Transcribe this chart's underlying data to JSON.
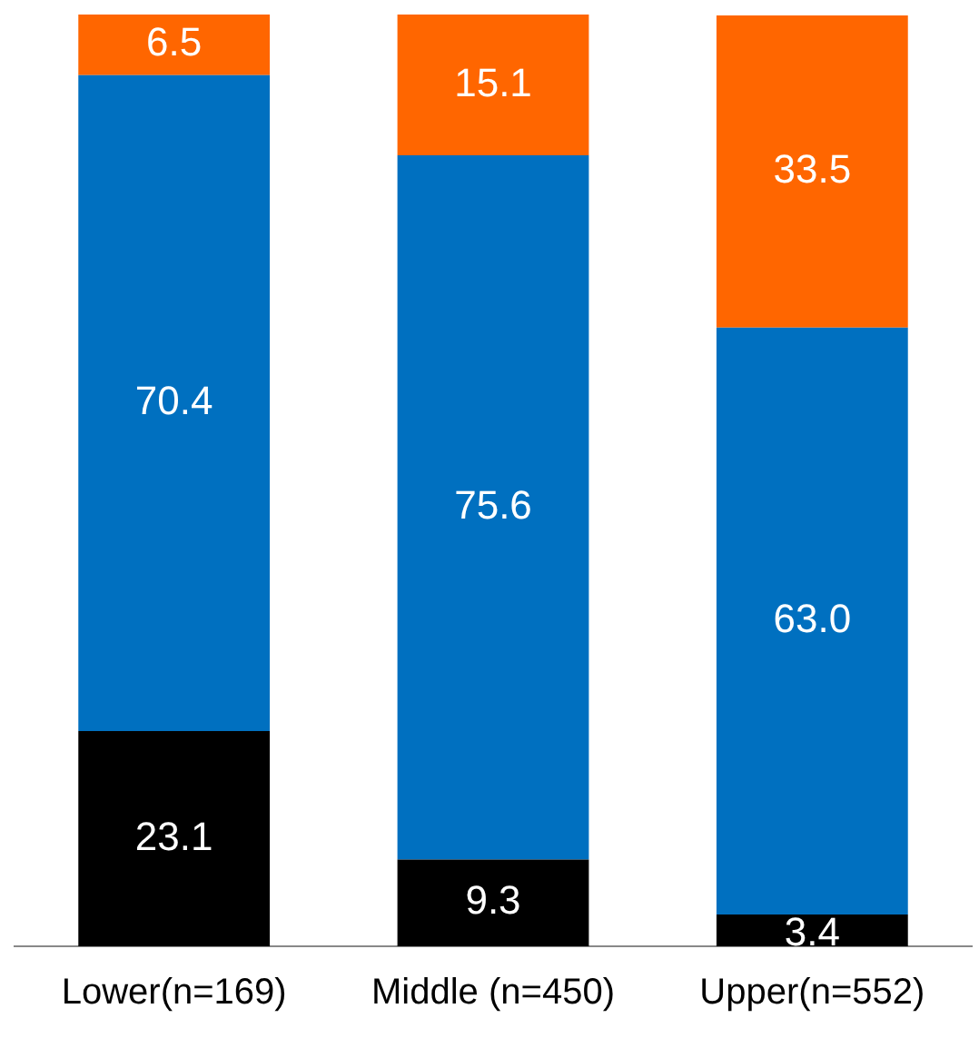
{
  "chart_data": {
    "type": "bar",
    "stacked": true,
    "categories": [
      "Lower(n=169)",
      "Middle (n=450)",
      "Upper(n=552)"
    ],
    "series": [
      {
        "color": "#000000",
        "values": [
          23.1,
          9.3,
          3.4
        ],
        "value_labels": [
          "23.1",
          "9.3",
          "3.4"
        ]
      },
      {
        "color": "#0070c0",
        "values": [
          70.4,
          75.6,
          63.0
        ],
        "value_labels": [
          "70.4",
          "75.6",
          "63.0"
        ]
      },
      {
        "color": "#ff6600",
        "values": [
          6.5,
          15.1,
          33.5
        ],
        "value_labels": [
          "6.5",
          "15.1",
          "33.5"
        ]
      }
    ],
    "legend": false,
    "grid": false
  }
}
